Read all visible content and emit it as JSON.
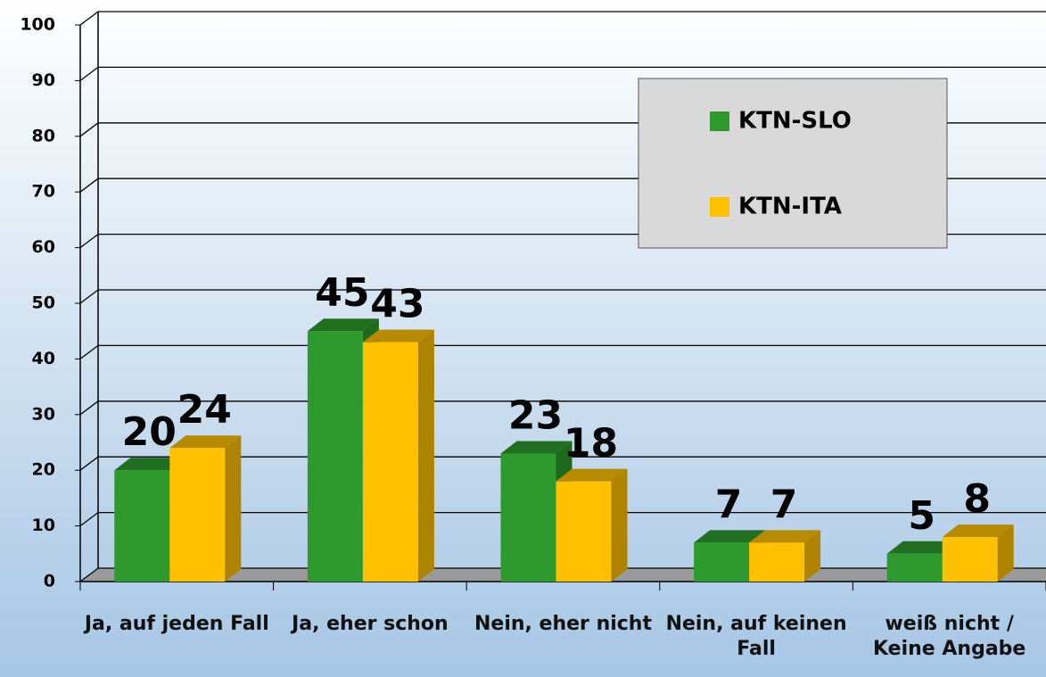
{
  "chart_data": {
    "type": "bar3d",
    "categories": [
      "Ja, auf jeden Fall",
      "Ja, eher schon",
      "Nein, eher nicht",
      "Nein, auf keinen Fall",
      "weiß nicht / Keine Angabe"
    ],
    "series": [
      {
        "name": "KTN-SLO",
        "color": "#2e9a2e",
        "values": [
          20,
          45,
          23,
          7,
          5
        ]
      },
      {
        "name": "KTN-ITA",
        "color": "#ffc000",
        "values": [
          24,
          43,
          18,
          7,
          8
        ]
      }
    ],
    "ylim": [
      0,
      100
    ],
    "yticks": [
      0,
      10,
      20,
      30,
      40,
      50,
      60,
      70,
      80,
      90,
      100
    ],
    "grid": true,
    "legend": "upper right"
  }
}
